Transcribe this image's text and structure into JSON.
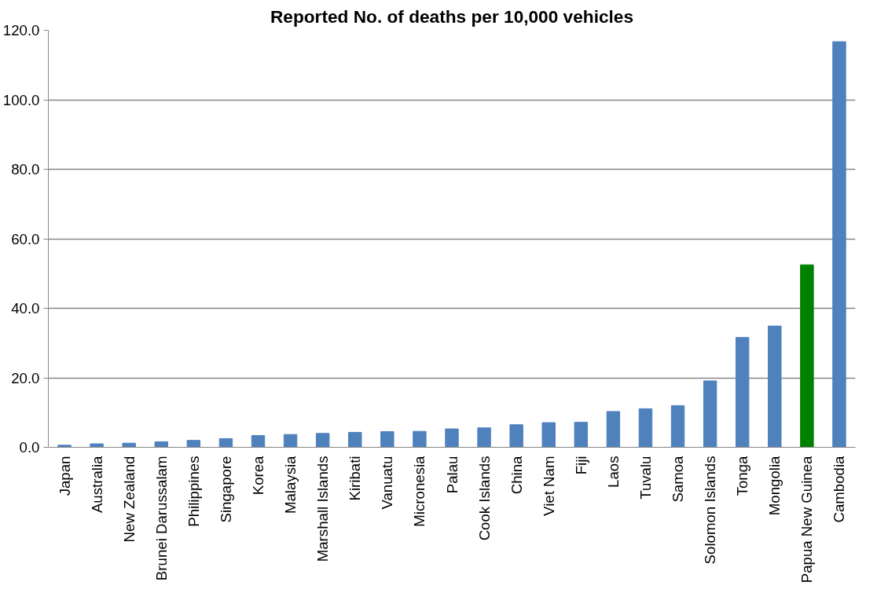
{
  "chart_data": {
    "type": "bar",
    "title": "Reported No. of deaths per 10,000 vehicles",
    "categories": [
      "Japan",
      "Australia",
      "New Zealand",
      "Brunei Darussalam",
      "Philippines",
      "Singapore",
      "Korea",
      "Malaysia",
      "Marshall Islands",
      "Kiribati",
      "Vanuatu",
      "Micronesia",
      "Palau",
      "Cook Islands",
      "China",
      "Viet Nam",
      "Fiji",
      "Laos",
      "Tuvalu",
      "Samoa",
      "Solomon Islands",
      "Tonga",
      "Mongolia",
      "Papua New Guinea",
      "Cambodia"
    ],
    "values": [
      0.6,
      1.0,
      1.2,
      1.6,
      2.0,
      2.5,
      3.4,
      3.7,
      4.0,
      4.3,
      4.5,
      4.6,
      5.3,
      5.6,
      6.5,
      7.1,
      7.2,
      10.3,
      11.1,
      12.0,
      19.1,
      31.6,
      34.9,
      52.5,
      116.7
    ],
    "colors": [
      "#4f81bd",
      "#4f81bd",
      "#4f81bd",
      "#4f81bd",
      "#4f81bd",
      "#4f81bd",
      "#4f81bd",
      "#4f81bd",
      "#4f81bd",
      "#4f81bd",
      "#4f81bd",
      "#4f81bd",
      "#4f81bd",
      "#4f81bd",
      "#4f81bd",
      "#4f81bd",
      "#4f81bd",
      "#4f81bd",
      "#4f81bd",
      "#4f81bd",
      "#4f81bd",
      "#4f81bd",
      "#4f81bd",
      "#008000",
      "#4f81bd"
    ],
    "ylim": [
      0,
      120
    ],
    "yticks": [
      {
        "value": 0,
        "label": "0.0"
      },
      {
        "value": 20,
        "label": "20.0"
      },
      {
        "value": 40,
        "label": "40.0"
      },
      {
        "value": 60,
        "label": "60.0"
      },
      {
        "value": 80,
        "label": "80.0"
      },
      {
        "value": 100,
        "label": "100.0"
      },
      {
        "value": 120,
        "label": "120.0"
      }
    ],
    "grid": "y"
  }
}
